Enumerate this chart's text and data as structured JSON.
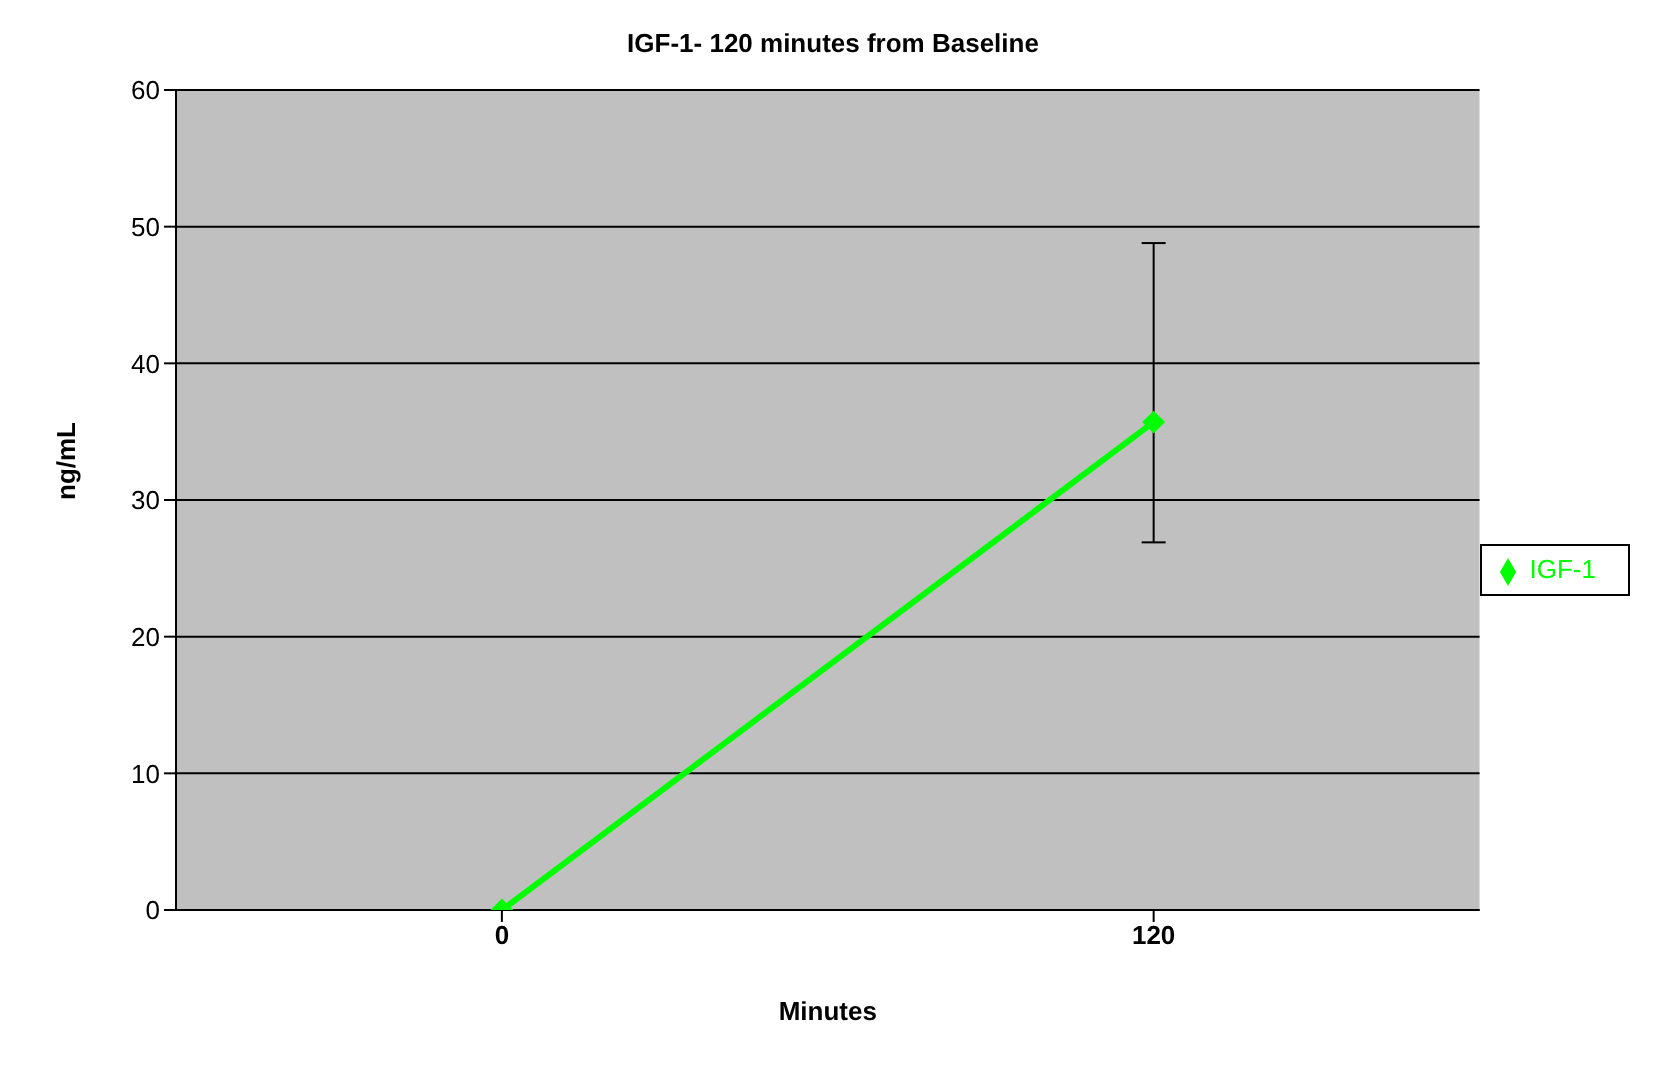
{
  "chart_data": {
    "type": "line",
    "title": "IGF-1- 120 minutes from Baseline",
    "xlabel": "Minutes",
    "ylabel": "ng/mL",
    "categories": [
      "0",
      "120"
    ],
    "series": [
      {
        "name": "IGF-1",
        "color": "#00ff00",
        "values": [
          0,
          35.7
        ],
        "errors": [
          null,
          [
            26.9,
            48.8
          ]
        ]
      }
    ],
    "ylim": [
      0,
      60
    ],
    "yticks": [
      0,
      10,
      20,
      30,
      40,
      50,
      60
    ],
    "grid": "y",
    "legend": "right",
    "marker": "diamond",
    "line_style": "solid"
  }
}
